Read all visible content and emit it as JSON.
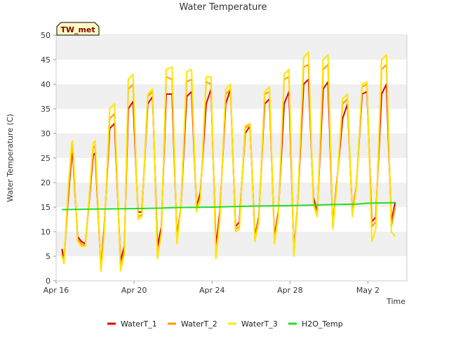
{
  "chart_data": {
    "type": "line",
    "title": "Water Temperature",
    "xlabel": "Time",
    "ylabel": "Water Temperature (C)",
    "badge": "TW_met",
    "ylim": [
      0,
      50
    ],
    "yticks": [
      0,
      5,
      10,
      15,
      20,
      25,
      30,
      35,
      40,
      45,
      50
    ],
    "xlim": [
      0,
      18
    ],
    "xticks": [
      {
        "x": 0,
        "label": "Apr 16"
      },
      {
        "x": 4,
        "label": "Apr 20"
      },
      {
        "x": 8,
        "label": "Apr 24"
      },
      {
        "x": 12,
        "label": "Apr 28"
      },
      {
        "x": 16,
        "label": "May 2"
      }
    ],
    "grid": "horizontal alternating bands",
    "legend_position": "bottom",
    "series": [
      {
        "name": "WaterT_1",
        "color": "#dd0000",
        "x": [
          0.3,
          0.4,
          0.6,
          0.8,
          0.85,
          1.1,
          1.3,
          1.5,
          1.9,
          2.0,
          2.3,
          2.45,
          2.75,
          3.0,
          3.3,
          3.5,
          3.7,
          3.95,
          4.2,
          4.4,
          4.7,
          4.95,
          5.2,
          5.4,
          5.65,
          5.95,
          6.2,
          6.4,
          6.7,
          6.95,
          7.2,
          7.4,
          7.7,
          7.95,
          8.2,
          8.4,
          8.7,
          8.95,
          9.2,
          9.4,
          9.7,
          9.95,
          10.2,
          10.4,
          10.7,
          10.95,
          11.2,
          11.4,
          11.7,
          11.95,
          12.2,
          12.4,
          12.7,
          12.95,
          13.2,
          13.4,
          13.7,
          13.95,
          14.2,
          14.4,
          14.7,
          14.95,
          15.2,
          15.4,
          15.7,
          15.95,
          16.2,
          16.4,
          16.7,
          16.95,
          17.2,
          17.4
        ],
        "y": [
          6.5,
          4,
          16,
          25.5,
          26,
          9,
          8,
          7.5,
          25.5,
          26,
          2.5,
          10,
          31,
          32,
          4,
          7,
          35,
          36.5,
          14,
          14,
          36,
          37.5,
          7,
          11,
          38,
          38,
          9,
          15,
          37.5,
          38.5,
          15,
          18,
          36,
          39,
          7,
          14,
          36,
          39,
          11,
          12,
          30,
          31.5,
          9,
          13,
          36,
          37,
          9,
          14,
          36,
          38.5,
          6,
          16,
          40,
          41,
          17,
          14,
          39,
          40.5,
          11,
          20,
          33,
          36,
          14,
          19,
          38,
          38.5,
          12,
          13,
          38,
          40,
          12,
          16
        ]
      },
      {
        "name": "WaterT_2",
        "color": "#ff9900",
        "x": [
          0.3,
          0.4,
          0.6,
          0.8,
          0.85,
          1.1,
          1.3,
          1.5,
          1.9,
          2.0,
          2.3,
          2.45,
          2.75,
          3.0,
          3.3,
          3.5,
          3.7,
          3.95,
          4.2,
          4.4,
          4.7,
          4.95,
          5.2,
          5.4,
          5.65,
          5.95,
          6.2,
          6.4,
          6.7,
          6.95,
          7.2,
          7.4,
          7.7,
          7.95,
          8.2,
          8.4,
          8.7,
          8.95,
          9.2,
          9.4,
          9.7,
          9.95,
          10.2,
          10.4,
          10.7,
          10.95,
          11.2,
          11.4,
          11.7,
          11.95,
          12.2,
          12.4,
          12.7,
          12.95,
          13.2,
          13.4,
          13.7,
          13.95,
          14.2,
          14.4,
          14.7,
          14.95,
          15.2,
          15.4,
          15.7,
          15.95,
          16.2,
          16.4,
          16.7,
          16.95,
          17.2,
          17.4
        ],
        "y": [
          5.5,
          3.5,
          17,
          27,
          27.5,
          8.5,
          7.5,
          7,
          27,
          27.5,
          2,
          9,
          33,
          34,
          3,
          6,
          39,
          40,
          13,
          13.5,
          37.5,
          38.5,
          5,
          10,
          41.5,
          41,
          8,
          15,
          40.5,
          41,
          14.5,
          17,
          40.5,
          40,
          5,
          13,
          38,
          39,
          10.5,
          11,
          31,
          32,
          8.5,
          12.5,
          38,
          38.5,
          8,
          13.5,
          41,
          41.5,
          5.5,
          16,
          43.5,
          44,
          16,
          13.5,
          43,
          44,
          11,
          19.5,
          36,
          37,
          13.5,
          19,
          39.5,
          40,
          11,
          12,
          43,
          44,
          11,
          15
        ]
      },
      {
        "name": "WaterT_3",
        "color": "#ffe600",
        "x": [
          0.3,
          0.4,
          0.6,
          0.8,
          0.85,
          1.1,
          1.3,
          1.5,
          1.9,
          2.0,
          2.3,
          2.45,
          2.75,
          3.0,
          3.3,
          3.5,
          3.7,
          3.95,
          4.2,
          4.4,
          4.7,
          4.95,
          5.2,
          5.4,
          5.65,
          5.95,
          6.2,
          6.4,
          6.7,
          6.95,
          7.2,
          7.4,
          7.7,
          7.95,
          8.2,
          8.4,
          8.7,
          8.95,
          9.2,
          9.4,
          9.7,
          9.95,
          10.2,
          10.4,
          10.7,
          10.95,
          11.2,
          11.4,
          11.7,
          11.95,
          12.2,
          12.4,
          12.7,
          12.95,
          13.2,
          13.4,
          13.7,
          13.95,
          14.2,
          14.4,
          14.7,
          14.95,
          15.2,
          15.4,
          15.7,
          15.95,
          16.2,
          16.4,
          16.7,
          16.95,
          17.2,
          17.4
        ],
        "y": [
          5,
          3.5,
          18,
          28,
          28.5,
          8,
          7,
          7,
          28,
          28.5,
          2,
          8.5,
          35,
          36,
          2,
          5.5,
          41,
          42,
          12.5,
          13,
          38,
          39,
          4.5,
          9.5,
          43,
          43.5,
          7.5,
          15,
          42.5,
          43,
          14,
          16.5,
          41.5,
          41.5,
          4.5,
          12.5,
          39,
          40,
          10,
          10.5,
          31.5,
          32,
          8,
          12,
          38.5,
          39.5,
          7.5,
          13,
          42,
          43,
          5,
          16,
          45.5,
          46.5,
          15.5,
          13,
          45,
          46,
          10.5,
          19,
          37,
          38,
          13,
          18.5,
          40,
          40.5,
          8,
          10.5,
          45,
          46,
          10,
          9
        ]
      },
      {
        "name": "H2O_Temp",
        "color": "#22dd22",
        "x": [
          0.3,
          2.0,
          4.0,
          5.4,
          6.0,
          8.0,
          10.0,
          12.0,
          14.0,
          15.4,
          16.0,
          17.4
        ],
        "y": [
          14.5,
          14.6,
          14.7,
          14.8,
          14.9,
          15.0,
          15.2,
          15.3,
          15.5,
          15.6,
          15.8,
          15.9
        ]
      }
    ]
  }
}
